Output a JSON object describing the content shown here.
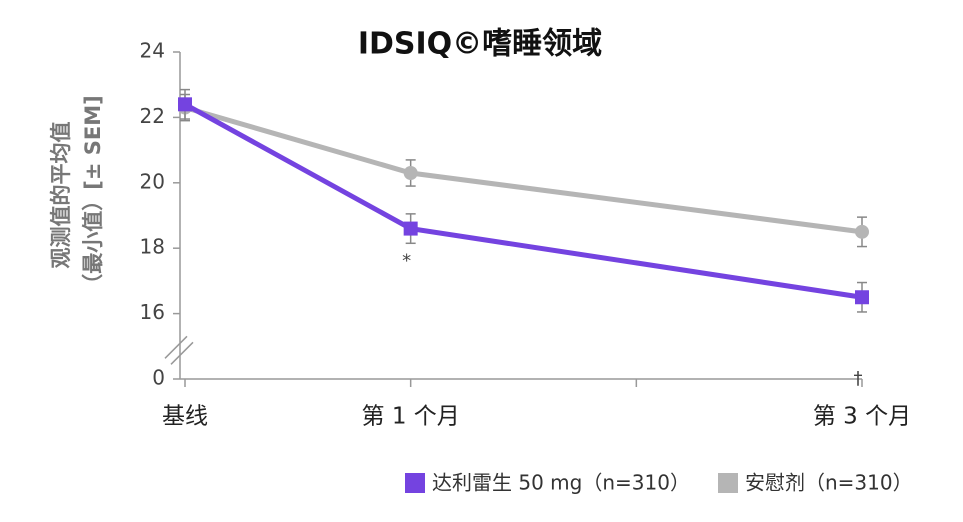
{
  "chart_data": {
    "type": "line",
    "title": "IDSIQ©嗜睡领域",
    "y_label": [
      "观测值的平均值",
      "（最小值）[± SEM]"
    ],
    "x": [
      0,
      1,
      3
    ],
    "xlim": [
      0,
      3
    ],
    "xticks": [
      {
        "value": 0,
        "label": "基线"
      },
      {
        "value": 1,
        "label": "第 1 个月"
      },
      {
        "value": 2,
        "label": null
      },
      {
        "value": 3,
        "label": "第 3 个月"
      }
    ],
    "ylim": [
      0,
      24
    ],
    "yticks": [
      0,
      16,
      18,
      20,
      22,
      24
    ],
    "y_break": true,
    "series": [
      {
        "name": "达利雷生 50 mg（n=310）",
        "color": "#7443e0",
        "values": [
          22.4,
          18.6,
          16.5
        ],
        "errors": [
          0.45,
          0.45,
          0.45
        ]
      },
      {
        "name": "安慰剂（n=310）",
        "color": "#b5b5b5",
        "values": [
          22.3,
          20.3,
          18.5
        ],
        "errors": [
          0.4,
          0.4,
          0.45
        ]
      }
    ],
    "annotations": [
      {
        "text": "*",
        "x": 1,
        "y": 17.6
      },
      {
        "text": "†",
        "x": 3,
        "y": 15.5
      }
    ]
  }
}
